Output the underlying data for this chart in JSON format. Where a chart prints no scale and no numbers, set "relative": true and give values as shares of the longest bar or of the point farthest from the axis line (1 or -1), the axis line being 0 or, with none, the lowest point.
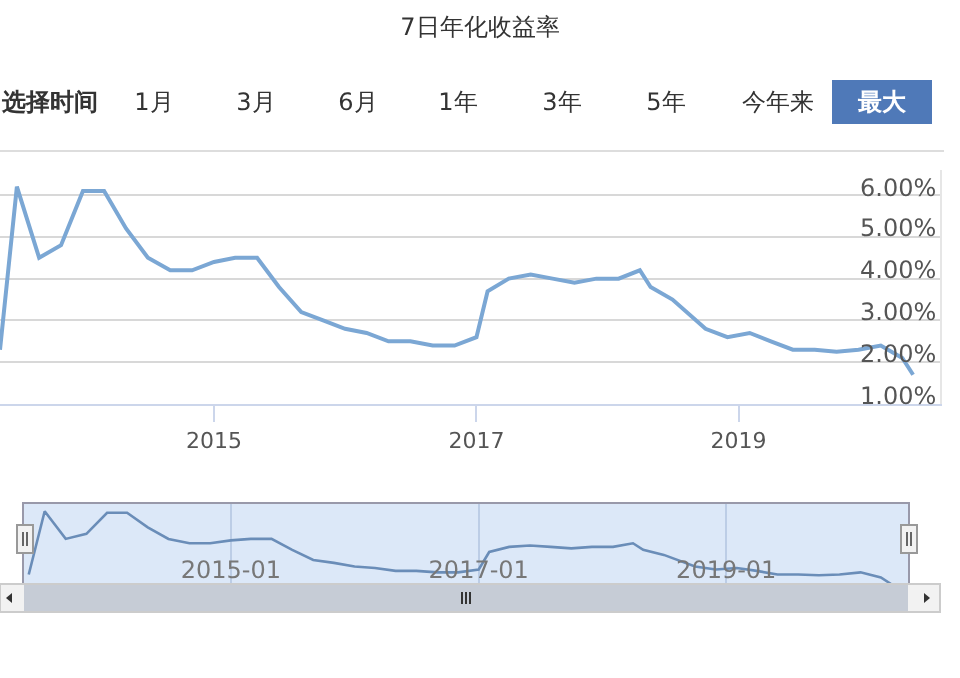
{
  "chart_data": [
    {
      "type": "line",
      "title": "7日年化收益率",
      "annotations": [
        "选择时间",
        "1月",
        "3月",
        "6月",
        "1年",
        "3年",
        "5年",
        "今年来",
        "最大"
      ],
      "x": [
        "2013-05-15",
        "2013-07",
        "2013-09",
        "2013-11",
        "2014-01",
        "2014-03",
        "2014-05",
        "2014-07",
        "2014-09",
        "2014-11",
        "2015-01",
        "2015-03",
        "2015-05",
        "2015-07",
        "2015-09",
        "2015-11",
        "2016-01",
        "2016-03",
        "2016-05",
        "2016-07",
        "2016-09",
        "2016-11",
        "2017-01",
        "2017-02",
        "2017-04",
        "2017-06",
        "2017-08",
        "2017-10",
        "2017-12",
        "2018-02",
        "2018-04",
        "2018-05",
        "2018-07",
        "2018-10",
        "2018-12",
        "2019-02",
        "2019-04",
        "2019-06",
        "2019-08",
        "2019-10",
        "2019-12",
        "2020-02",
        "2020-04",
        "2020-05"
      ],
      "series": [
        {
          "color": "#7ba7d4",
          "values": [
            2.3,
            6.2,
            4.5,
            4.8,
            6.1,
            6.1,
            5.2,
            4.5,
            4.2,
            4.2,
            4.4,
            4.5,
            4.5,
            3.8,
            3.2,
            3.0,
            2.8,
            2.7,
            2.5,
            2.5,
            2.4,
            2.4,
            2.6,
            3.7,
            4.0,
            4.1,
            4.0,
            3.9,
            4.0,
            4.0,
            4.2,
            3.8,
            3.5,
            2.8,
            2.6,
            2.7,
            2.5,
            2.3,
            2.3,
            2.25,
            2.3,
            2.4,
            2.1,
            1.7
          ]
        }
      ],
      "xlim": [
        "2013-05-15",
        "2020-07-15"
      ],
      "xticks": [
        "2015",
        "2017",
        "2019"
      ],
      "ylim": [
        1,
        6.6
      ],
      "yticks": [
        {
          "value": 1,
          "label": "1.00%"
        },
        {
          "value": 2,
          "label": "2.00%"
        },
        {
          "value": 3,
          "label": "3.00%"
        },
        {
          "value": 4,
          "label": "4.00%"
        },
        {
          "value": 5,
          "label": "5.00%"
        },
        {
          "value": 6,
          "label": "6.00%"
        }
      ],
      "grid": "y"
    },
    {
      "type": "line",
      "relative": true,
      "x": [
        "2013-05-15",
        "2013-07",
        "2013-09",
        "2013-11",
        "2014-01",
        "2014-03",
        "2014-05",
        "2014-07",
        "2014-09",
        "2014-11",
        "2015-01",
        "2015-03",
        "2015-05",
        "2015-07",
        "2015-09",
        "2015-11",
        "2016-01",
        "2016-03",
        "2016-05",
        "2016-07",
        "2016-09",
        "2016-11",
        "2017-01",
        "2017-02",
        "2017-04",
        "2017-06",
        "2017-08",
        "2017-10",
        "2017-12",
        "2018-02",
        "2018-04",
        "2018-05",
        "2018-07",
        "2018-10",
        "2018-12",
        "2019-02",
        "2019-04",
        "2019-06",
        "2019-08",
        "2019-10",
        "2019-12",
        "2020-02",
        "2020-04",
        "2020-05"
      ],
      "series": [
        {
          "color": "#6a8db8",
          "values": [
            0.13,
            1,
            0.62,
            0.69,
            0.98,
            0.98,
            0.78,
            0.62,
            0.56,
            0.56,
            0.6,
            0.62,
            0.62,
            0.47,
            0.33,
            0.29,
            0.24,
            0.22,
            0.18,
            0.18,
            0.16,
            0.16,
            0.2,
            0.44,
            0.51,
            0.53,
            0.51,
            0.49,
            0.51,
            0.51,
            0.56,
            0.47,
            0.4,
            0.24,
            0.2,
            0.22,
            0.18,
            0.13,
            0.13,
            0.12,
            0.13,
            0.16,
            0.09,
            0
          ]
        }
      ],
      "xlim": [
        "2013-05-01",
        "2020-06-20"
      ],
      "xticks": [
        {
          "value": "2015-01-01",
          "label": "2015-01"
        },
        {
          "value": "2017-01-01",
          "label": "2017-01"
        },
        {
          "value": "2019-01-01",
          "label": "2019-01"
        }
      ],
      "grid": "x",
      "tick_labels": "x"
    }
  ]
}
